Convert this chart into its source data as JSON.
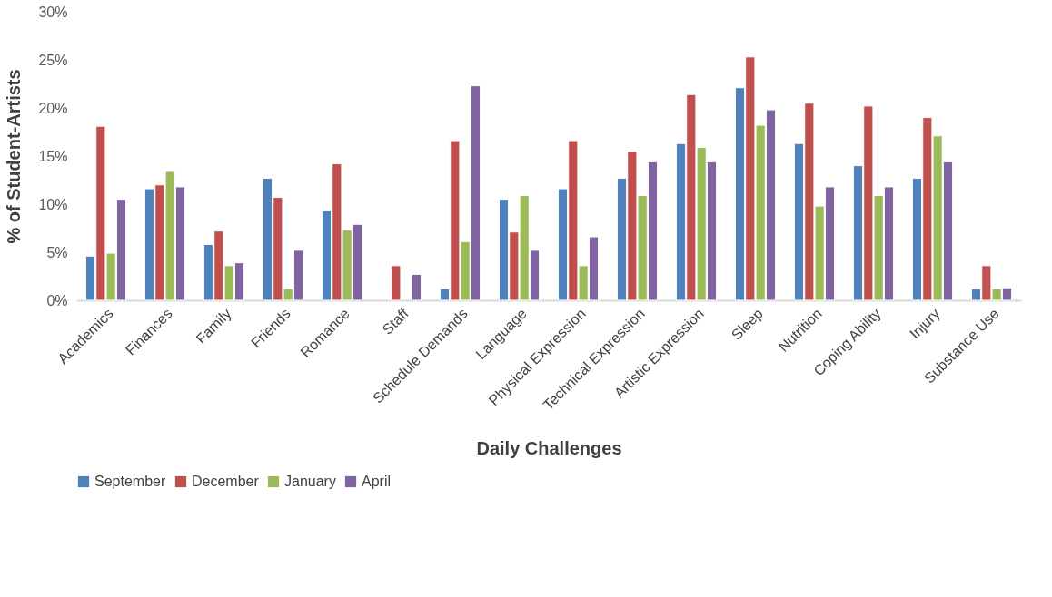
{
  "chart_data": {
    "type": "bar",
    "xlabel": "Daily Challenges",
    "ylabel": "% of Student-Artists",
    "categories": [
      "Academics",
      "Finances",
      "Family",
      "Friends",
      "Romance",
      "Staff",
      "Schedule Demands",
      "Language",
      "Physical Expression",
      "Technical Expression",
      "Artistic Expression",
      "Sleep",
      "Nutrition",
      "Coping Ability",
      "Injury",
      "Substance Use"
    ],
    "series": [
      {
        "name": "September",
        "color": "#4f81bd",
        "values": [
          4.6,
          11.6,
          5.8,
          12.7,
          9.3,
          null,
          1.2,
          10.5,
          11.6,
          12.7,
          16.3,
          22.1,
          16.3,
          14.0,
          12.7,
          1.2
        ]
      },
      {
        "name": "December",
        "color": "#c0504d",
        "values": [
          18.1,
          12.0,
          7.2,
          10.7,
          14.2,
          3.6,
          16.6,
          7.1,
          16.6,
          15.5,
          21.4,
          25.3,
          20.5,
          20.2,
          19.0,
          3.6
        ]
      },
      {
        "name": "January",
        "color": "#9bbb59",
        "values": [
          4.9,
          13.4,
          3.6,
          1.2,
          7.3,
          null,
          6.1,
          10.9,
          3.6,
          10.9,
          15.9,
          18.2,
          9.8,
          10.9,
          17.1,
          1.2
        ]
      },
      {
        "name": "April",
        "color": "#8064a2",
        "values": [
          10.5,
          11.8,
          3.9,
          5.2,
          7.9,
          2.7,
          22.3,
          5.2,
          6.6,
          14.4,
          14.4,
          19.8,
          11.8,
          11.8,
          14.4,
          1.3
        ]
      }
    ],
    "ylim": [
      0,
      30
    ],
    "yticks": [
      {
        "value": 0,
        "label": "0%"
      },
      {
        "value": 5,
        "label": "5%"
      },
      {
        "value": 10,
        "label": "10%"
      },
      {
        "value": 15,
        "label": "15%"
      },
      {
        "value": 20,
        "label": "20%"
      },
      {
        "value": 25,
        "label": "25%"
      },
      {
        "value": 30,
        "label": "30%"
      }
    ],
    "grid": false,
    "legend": "bottom left"
  }
}
